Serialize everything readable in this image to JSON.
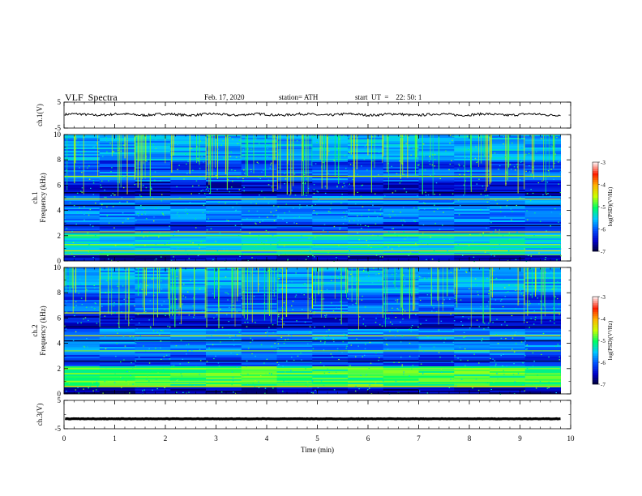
{
  "header": {
    "title": "VLF  Spectra",
    "date": "Feb. 17, 2020",
    "station": "station= ATH",
    "start": "start  UT  =    22: 50: 1"
  },
  "chart_data": [
    {
      "type": "line",
      "panel": "ch1-waveform",
      "ylabel": "ch.1(V)",
      "ylim": [
        -5,
        5
      ],
      "yticks": [
        "5",
        "-5"
      ],
      "xlim": [
        0,
        10
      ],
      "series": [
        {
          "values_desc": "noisy trace centered near 0 V, amplitude about ±1 V",
          "color": "#000000"
        }
      ]
    },
    {
      "type": "heatmap",
      "panel": "ch1-spectrogram",
      "ylabel": "ch.1\nFrequency  (kHz)",
      "ylim": [
        0,
        10
      ],
      "yticks": [
        "0",
        "2",
        "4",
        "6",
        "8",
        "10"
      ],
      "xlim": [
        0,
        9.8
      ],
      "colorbar": {
        "label": "log(PSD)(V²/Hz)",
        "range": [
          -7,
          -3
        ],
        "ticks": [
          "-3",
          "-4",
          "-5",
          "-6",
          "-7"
        ]
      }
    },
    {
      "type": "heatmap",
      "panel": "ch2-spectrogram",
      "ylabel": "ch.2\nFrequency  (kHz)",
      "ylim": [
        0,
        10
      ],
      "yticks": [
        "0",
        "2",
        "4",
        "6",
        "8",
        "10"
      ],
      "xlim": [
        0,
        9.8
      ],
      "colorbar": {
        "label": "log(PSD)(V²/Hz)",
        "range": [
          -7,
          -3
        ],
        "ticks": [
          "-3",
          "-4",
          "-5",
          "-6",
          "-7"
        ]
      }
    },
    {
      "type": "line",
      "panel": "ch3-waveform",
      "ylabel": "ch.3(V)",
      "ylim": [
        -5,
        5
      ],
      "yticks": [
        "5",
        "-5"
      ],
      "xlim": [
        0,
        10
      ],
      "series": [
        {
          "values_desc": "flat thick trace at about -1.5 V",
          "color": "#000000"
        }
      ]
    }
  ],
  "xaxis": {
    "label": "Time  (min)",
    "ticks": [
      "0",
      "1",
      "2",
      "3",
      "4",
      "5",
      "6",
      "7",
      "8",
      "9",
      "10"
    ],
    "range": [
      0,
      10
    ]
  },
  "colors": {
    "axis": "#000000",
    "trace": "#000000",
    "colormap": [
      "#000028",
      "#0000c8",
      "#0050ff",
      "#00c8ff",
      "#00ff64",
      "#c8ff00",
      "#ffb400",
      "#ff1e00",
      "#ffe6e6"
    ]
  }
}
